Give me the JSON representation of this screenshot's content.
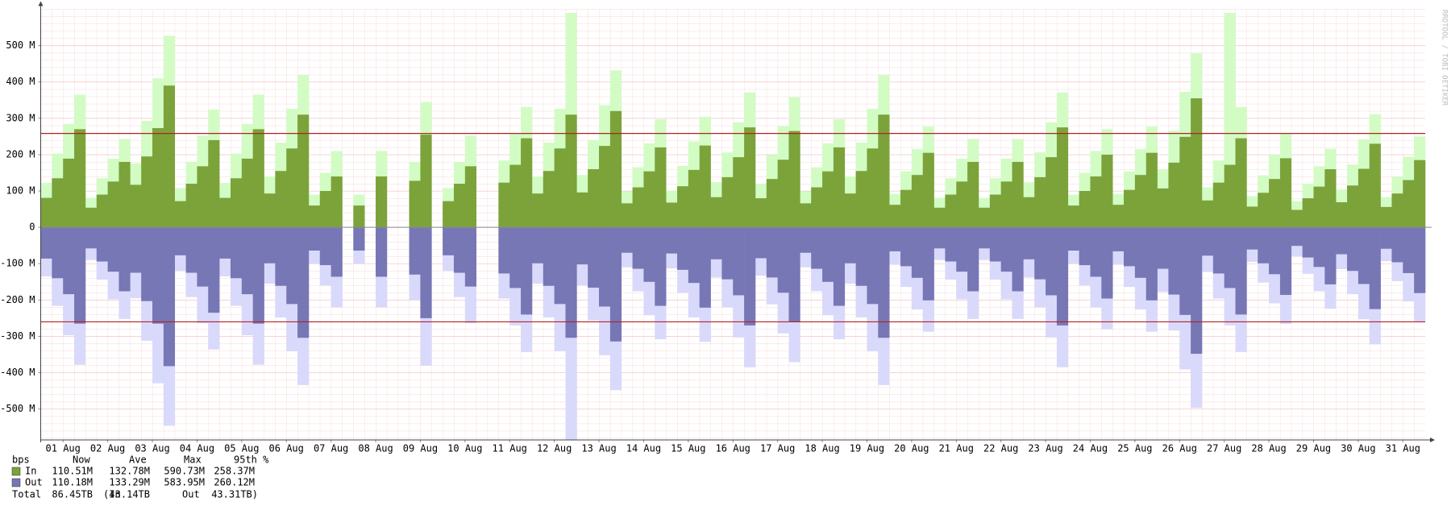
{
  "chart_data": {
    "type": "step-area",
    "watermark": "RRDTOOL / TOBI OETIKER",
    "x": [
      0,
      0.25,
      0.5,
      0.75,
      1,
      1.25,
      1.5,
      1.75,
      2,
      2.25,
      2.5,
      2.75,
      3,
      3.25,
      3.5,
      3.75,
      4,
      4.25,
      4.5,
      4.75,
      5,
      5.25,
      5.5,
      5.75,
      6,
      6.25,
      6.5,
      6.75,
      7,
      7.25,
      7.5,
      7.75,
      8,
      8.25,
      8.5,
      8.75,
      9,
      9.25,
      9.5,
      9.75,
      10,
      10.25,
      10.5,
      10.75,
      11,
      11.25,
      11.5,
      11.75,
      12,
      12.25,
      12.5,
      12.75,
      13,
      13.25,
      13.5,
      13.75,
      14,
      14.25,
      14.5,
      14.75,
      15,
      15.25,
      15.5,
      15.75,
      16,
      16.25,
      16.5,
      16.75,
      17,
      17.25,
      17.5,
      17.75,
      18,
      18.25,
      18.5,
      18.75,
      19,
      19.25,
      19.5,
      19.75,
      20,
      20.25,
      20.5,
      20.75,
      21,
      21.25,
      21.5,
      21.75,
      22,
      22.25,
      22.5,
      22.75,
      23,
      23.25,
      23.5,
      23.75,
      24,
      24.25,
      24.5,
      24.75,
      25,
      25.25,
      25.5,
      25.75,
      26,
      26.25,
      26.5,
      26.75,
      27,
      27.25,
      27.5,
      27.75,
      28,
      28.25,
      28.5,
      28.75,
      29,
      29.25,
      29.5,
      29.75,
      30,
      30.25,
      30.5,
      30.75
    ],
    "series": [
      {
        "name": "In",
        "color": "#7ba33a",
        "max_color": "#d2fcc4",
        "values": [
          81,
          135,
          189,
          270,
          54,
          90,
          126,
          180,
          117,
          195,
          273,
          390,
          72,
          120,
          168,
          240,
          81,
          135,
          189,
          270,
          93,
          155,
          217,
          310,
          60,
          100,
          140,
          null,
          60,
          null,
          140,
          null,
          null,
          128,
          255,
          null,
          72,
          120,
          168,
          null,
          null,
          123,
          172,
          245,
          93,
          155,
          217,
          310,
          96,
          160,
          224,
          320,
          66,
          110,
          154,
          220,
          68,
          113,
          158,
          225,
          83,
          138,
          193,
          275,
          80,
          133,
          186,
          265,
          66,
          110,
          154,
          220,
          93,
          155,
          217,
          310,
          62,
          103,
          144,
          205,
          54,
          90,
          126,
          180,
          54,
          90,
          126,
          180,
          83,
          138,
          193,
          275,
          60,
          100,
          140,
          200,
          62,
          103,
          144,
          205,
          107,
          178,
          249,
          355,
          74,
          123,
          172,
          245,
          57,
          95,
          133,
          190,
          48,
          80,
          112,
          160,
          69,
          115,
          161,
          230,
          56,
          93,
          130,
          185
        ],
        "max_values": [
          122,
          203,
          284,
          365,
          81,
          135,
          189,
          243,
          176,
          293,
          410,
          527,
          108,
          180,
          252,
          324,
          122,
          203,
          284,
          365,
          140,
          233,
          326,
          419,
          90,
          150,
          210,
          null,
          90,
          null,
          210,
          null,
          null,
          180,
          345,
          null,
          108,
          180,
          252,
          null,
          null,
          184,
          257,
          331,
          140,
          233,
          326,
          590,
          144,
          240,
          336,
          432,
          99,
          165,
          231,
          297,
          101,
          169,
          236,
          304,
          124,
          206,
          289,
          371,
          119,
          199,
          278,
          358,
          99,
          165,
          231,
          297,
          140,
          233,
          326,
          419,
          92,
          154,
          215,
          277,
          81,
          135,
          189,
          243,
          81,
          135,
          189,
          243,
          124,
          206,
          289,
          371,
          90,
          150,
          210,
          270,
          92,
          154,
          215,
          277,
          160,
          266,
          373,
          479,
          110,
          184,
          590,
          331,
          86,
          143,
          200,
          257,
          72,
          120,
          168,
          216,
          104,
          173,
          242,
          311,
          83,
          139,
          194,
          250
        ]
      },
      {
        "name": "Out",
        "color": "#7777b6",
        "max_color": "#d9d9fb",
        "values": [
          -86,
          -140,
          -184,
          -265,
          -58,
          -94,
          -122,
          -176,
          -125,
          -203,
          -265,
          -382,
          -77,
          -125,
          -163,
          -235,
          -86,
          -140,
          -184,
          -265,
          -99,
          -161,
          -211,
          -304,
          -64,
          -104,
          -136,
          null,
          -64,
          null,
          -136,
          null,
          null,
          -130,
          -250,
          null,
          -77,
          -125,
          -163,
          null,
          null,
          -127,
          -167,
          -240,
          -99,
          -161,
          -211,
          -304,
          -102,
          -166,
          -218,
          -314,
          -70,
          -114,
          -150,
          -216,
          -72,
          -117,
          -153,
          -221,
          -88,
          -143,
          -187,
          -270,
          -85,
          -138,
          -180,
          -260,
          -70,
          -114,
          -150,
          -216,
          -99,
          -161,
          -211,
          -304,
          -66,
          -107,
          -139,
          -201,
          -58,
          -94,
          -122,
          -176,
          -58,
          -94,
          -122,
          -176,
          -88,
          -143,
          -187,
          -270,
          -64,
          -104,
          -136,
          -196,
          -66,
          -107,
          -139,
          -201,
          -114,
          -185,
          -241,
          -348,
          -78,
          -127,
          -167,
          -240,
          -61,
          -99,
          -129,
          -186,
          -51,
          -83,
          -109,
          -157,
          -74,
          -120,
          -156,
          -225,
          -59,
          -96,
          -126,
          -181
        ],
        "max_values": [
          -135,
          -216,
          -297,
          -378,
          -90,
          -144,
          -198,
          -252,
          -195,
          -312,
          -429,
          -546,
          -120,
          -192,
          -264,
          -336,
          -135,
          -216,
          -297,
          -378,
          -155,
          -248,
          -341,
          -434,
          -100,
          -160,
          -220,
          null,
          -100,
          null,
          -220,
          null,
          null,
          -200,
          -380,
          null,
          -120,
          -192,
          -264,
          null,
          null,
          -196,
          -270,
          -343,
          -155,
          -248,
          -341,
          -584,
          -160,
          -256,
          -352,
          -448,
          -110,
          -176,
          -242,
          -308,
          -113,
          -180,
          -248,
          -315,
          -138,
          -220,
          -303,
          -385,
          -133,
          -212,
          -292,
          -371,
          -110,
          -176,
          -242,
          -308,
          -155,
          -248,
          -341,
          -434,
          -103,
          -164,
          -226,
          -287,
          -90,
          -144,
          -198,
          -252,
          -90,
          -144,
          -198,
          -252,
          -138,
          -220,
          -303,
          -385,
          -100,
          -160,
          -220,
          -280,
          -103,
          -164,
          -226,
          -287,
          -178,
          -284,
          -391,
          -497,
          -123,
          -196,
          -270,
          -343,
          -95,
          -152,
          -209,
          -266,
          -80,
          -128,
          -176,
          -224,
          -115,
          -184,
          -253,
          -322,
          -93,
          -148,
          -204,
          -259
        ]
      }
    ],
    "percentile_lines": [
      258.37,
      -260.12
    ],
    "percentile_color": "#b32222",
    "xlim": [
      0,
      31
    ],
    "ylim": [
      -585,
      600
    ],
    "xticks": [
      {
        "value": 0.5,
        "label": "01 Aug"
      },
      {
        "value": 1.5,
        "label": "02 Aug"
      },
      {
        "value": 2.5,
        "label": "03 Aug"
      },
      {
        "value": 3.5,
        "label": "04 Aug"
      },
      {
        "value": 4.5,
        "label": "05 Aug"
      },
      {
        "value": 5.5,
        "label": "06 Aug"
      },
      {
        "value": 6.5,
        "label": "07 Aug"
      },
      {
        "value": 7.5,
        "label": "08 Aug"
      },
      {
        "value": 8.5,
        "label": "09 Aug"
      },
      {
        "value": 9.5,
        "label": "10 Aug"
      },
      {
        "value": 10.5,
        "label": "11 Aug"
      },
      {
        "value": 11.5,
        "label": "12 Aug"
      },
      {
        "value": 12.5,
        "label": "13 Aug"
      },
      {
        "value": 13.5,
        "label": "14 Aug"
      },
      {
        "value": 14.5,
        "label": "15 Aug"
      },
      {
        "value": 15.5,
        "label": "16 Aug"
      },
      {
        "value": 16.5,
        "label": "17 Aug"
      },
      {
        "value": 17.5,
        "label": "18 Aug"
      },
      {
        "value": 18.5,
        "label": "19 Aug"
      },
      {
        "value": 19.5,
        "label": "20 Aug"
      },
      {
        "value": 20.5,
        "label": "21 Aug"
      },
      {
        "value": 21.5,
        "label": "22 Aug"
      },
      {
        "value": 22.5,
        "label": "23 Aug"
      },
      {
        "value": 23.5,
        "label": "24 Aug"
      },
      {
        "value": 24.5,
        "label": "25 Aug"
      },
      {
        "value": 25.5,
        "label": "26 Aug"
      },
      {
        "value": 26.5,
        "label": "27 Aug"
      },
      {
        "value": 27.5,
        "label": "28 Aug"
      },
      {
        "value": 28.5,
        "label": "29 Aug"
      },
      {
        "value": 29.5,
        "label": "30 Aug"
      },
      {
        "value": 30.5,
        "label": "31 Aug"
      }
    ],
    "yticks": [
      {
        "value": -500,
        "label": "-500 M"
      },
      {
        "value": -400,
        "label": "-400 M"
      },
      {
        "value": -300,
        "label": "-300 M"
      },
      {
        "value": -200,
        "label": "-200 M"
      },
      {
        "value": -100,
        "label": "-100 M"
      },
      0,
      {
        "value": 100,
        "label": "100 M"
      },
      {
        "value": 200,
        "label": "200 M"
      },
      {
        "value": 300,
        "label": "300 M"
      },
      {
        "value": 400,
        "label": "400 M"
      },
      {
        "value": 500,
        "label": "500 M"
      }
    ],
    "grid": true,
    "legend": {
      "header": [
        "bps",
        "Now",
        "Ave",
        "Max",
        "95th %"
      ],
      "rows": [
        [
          "110.51M",
          "132.78M",
          "590.73M",
          "258.37M"
        ],
        [
          "110.18M",
          "133.29M",
          "583.95M",
          "260.12M"
        ]
      ],
      "total": [
        "Total",
        "86.45TB",
        "(In",
        "43.14TB",
        "Out",
        "43.31TB)"
      ]
    }
  }
}
